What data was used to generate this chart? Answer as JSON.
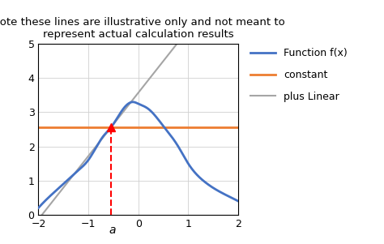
{
  "title": "Note these lines are illustrative only and not meant to\nrepresent actual calculation results",
  "title_fontsize": 9.5,
  "xlim": [
    -2,
    2
  ],
  "ylim": [
    0,
    5
  ],
  "xticks": [
    -2,
    -1,
    0,
    1,
    2
  ],
  "yticks": [
    0,
    1,
    2,
    3,
    4,
    5
  ],
  "a_point": -0.55,
  "f_color": "#4472C4",
  "constant_color": "#ED7D31",
  "linear_color": "#A5A5A5",
  "legend_labels": [
    "Function f(x)",
    "constant",
    "plus Linear"
  ],
  "background_color": "#ffffff",
  "f_xdata": [
    -2.0,
    -1.8,
    -1.5,
    -1.2,
    -1.0,
    -0.7,
    -0.55,
    -0.3,
    -0.1,
    0.0,
    0.2,
    0.5,
    0.8,
    1.0,
    1.3,
    1.6,
    2.0
  ],
  "f_ydata": [
    0.2,
    0.5,
    0.9,
    1.3,
    1.6,
    2.3,
    2.55,
    3.1,
    3.3,
    3.25,
    3.1,
    2.6,
    2.0,
    1.5,
    1.0,
    0.7,
    0.4
  ]
}
